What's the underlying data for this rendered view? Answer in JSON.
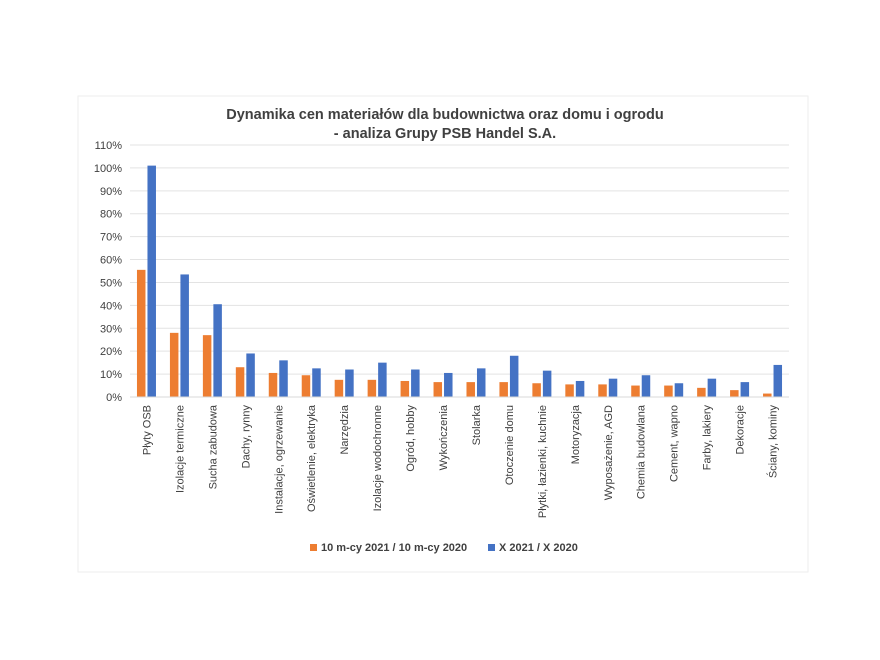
{
  "chart_data": {
    "type": "bar",
    "title_line1": "Dynamika cen materiałów dla budownictwa oraz domu i ogrodu",
    "title_line2": "- analiza Grupy PSB Handel S.A.",
    "xlabel": "",
    "ylabel": "",
    "ylim": [
      0,
      110
    ],
    "y_ticks": [
      "0%",
      "10%",
      "20%",
      "30%",
      "40%",
      "50%",
      "60%",
      "70%",
      "80%",
      "90%",
      "100%",
      "110%"
    ],
    "grid": true,
    "legend_position": "bottom",
    "categories": [
      "Płyty OSB",
      "Izolacje termiczne",
      "Sucha zabudowa",
      "Dachy, rynny",
      "Instalacje, ogrzewanie",
      "Oświetlenie, elektryka",
      "Narzędzia",
      "Izolacje wodochronne",
      "Ogród, hobby",
      "Wykończenia",
      "Stolarka",
      "Otoczenie domu",
      "Płytki, łazienki, kuchnie",
      "Motoryzacja",
      "Wyposażenie, AGD",
      "Chemia budowlana",
      "Cement, wapno",
      "Farby, lakiery",
      "Dekoracje",
      "Ściany, kominy"
    ],
    "series": [
      {
        "name": "10 m-cy 2021 / 10 m-cy 2020",
        "color": "#ED7D31",
        "values": [
          55.5,
          28,
          27,
          13,
          10.5,
          9.5,
          7.5,
          7.5,
          7,
          6.5,
          6.5,
          6.5,
          6,
          5.5,
          5.5,
          5,
          5,
          4,
          3,
          1.5
        ]
      },
      {
        "name": "X 2021 / X 2020",
        "color": "#4472C4",
        "values": [
          101,
          53.5,
          40.5,
          19,
          16,
          12.5,
          12,
          15,
          12,
          10.5,
          12.5,
          18,
          11.5,
          7,
          8,
          9.5,
          6,
          8,
          6.5,
          14
        ]
      }
    ]
  }
}
